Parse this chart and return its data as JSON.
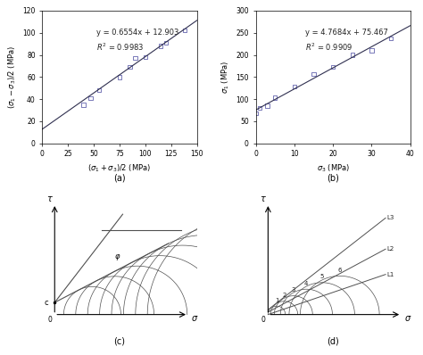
{
  "panel_a": {
    "x_data": [
      40,
      47,
      55,
      75,
      85,
      90,
      100,
      115,
      120,
      138
    ],
    "y_data": [
      35,
      41,
      48,
      60,
      69,
      77,
      78,
      88,
      91,
      102
    ],
    "slope": 0.6554,
    "intercept": 12.903,
    "r2": 0.9983,
    "xlabel": "($\\sigma_1 + \\sigma_3$)/2 (MPa)",
    "ylabel": "($\\sigma_1 - \\sigma_3$)/2 (MPa)",
    "xlim": [
      0,
      150
    ],
    "ylim": [
      0,
      120
    ],
    "label": "(a)"
  },
  "panel_b": {
    "x_data": [
      0,
      1,
      3,
      5,
      10,
      15,
      20,
      25,
      30,
      35
    ],
    "y_data": [
      68,
      80,
      85,
      103,
      128,
      157,
      173,
      200,
      210,
      238
    ],
    "slope": 4.7684,
    "intercept": 75.467,
    "r2": 0.9909,
    "xlabel": "$\\sigma_3$ (MPa)",
    "ylabel": "$\\sigma_1$ (MPa)",
    "xlim": [
      0,
      40
    ],
    "ylim": [
      0,
      300
    ],
    "label": "(b)"
  },
  "marker_color": "#7878b8",
  "line_color": "#303050",
  "mohr_color": "#505050",
  "bg_color": "#ffffff"
}
